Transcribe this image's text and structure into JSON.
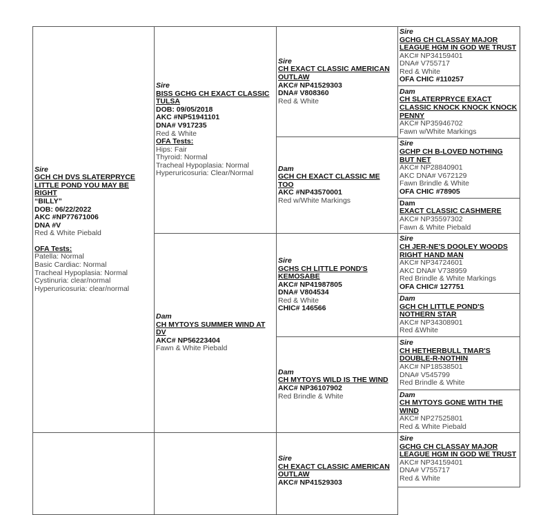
{
  "pedigree": [
    {
      "id": "c1-sire",
      "label": "Sire",
      "name": "GCH CH DVS SLATERPRYCE LITTLE POND YOU MAY BE RIGHT",
      "lines": [
        {
          "text": "“BILLY”",
          "style": "b"
        },
        {
          "text": "DOB: 06/22/2022",
          "style": "b"
        },
        {
          "text": "AKC #NP77671006",
          "style": "b"
        },
        {
          "text": "DNA #V",
          "style": "b"
        },
        {
          "text": "Red & White Piebald",
          "style": "n"
        },
        {
          "text": "OFA Tests:",
          "style": "h gap"
        },
        {
          "text": "Patella: Normal",
          "style": "n"
        },
        {
          "text": "Basic Cardiac: Normal",
          "style": "n"
        },
        {
          "text": "Tracheal Hypoplasia: Normal",
          "style": "n"
        },
        {
          "text": "Cystinuria: clear/normal",
          "style": "n"
        },
        {
          "text": "Hyperuricosuria: clear/normal",
          "style": "n"
        }
      ]
    },
    {
      "id": "c2-sire",
      "label": "Sire",
      "name": "BISS GCHG CH EXACT CLASSIC TULSA",
      "lines": [
        {
          "text": "DOB: 09/05/2018",
          "style": "b"
        },
        {
          "text": "AKC #NP51941101",
          "style": "b"
        },
        {
          "text": "DNA# V917235",
          "style": "b"
        },
        {
          "text": "Red & White",
          "style": "n"
        },
        {
          "text": "OFA Tests:",
          "style": "h"
        },
        {
          "text": "Hips: Fair",
          "style": "n"
        },
        {
          "text": "Thyroid: Normal",
          "style": "n"
        },
        {
          "text": "Tracheal Hypoplasia: Normal",
          "style": "n"
        },
        {
          "text": "Hyperuricosuria: Clear/Normal",
          "style": "n"
        }
      ]
    },
    {
      "id": "c2-dam",
      "label": "Dam",
      "name": "CH MYTOYS SUMMER WIND AT DV",
      "lines": [
        {
          "text": "AKC# NP56223404",
          "style": "b"
        },
        {
          "text": "Fawn & White Piebald",
          "style": "n"
        }
      ]
    },
    {
      "id": "c3-1",
      "label": "Sire",
      "name": "CH EXACT CLASSIC AMERICAN OUTLAW",
      "lines": [
        {
          "text": "AKC# NP41529303",
          "style": "b"
        },
        {
          "text": "DNA# V808360",
          "style": "b"
        },
        {
          "text": "Red & White",
          "style": "n"
        }
      ]
    },
    {
      "id": "c3-2",
      "label": "Dam",
      "name": "GCH CH EXACT CLASSIC ME TOO",
      "lines": [
        {
          "text": "AKC #NP43570001",
          "style": "b"
        },
        {
          "text": "Red w/White Markings",
          "style": "n"
        }
      ]
    },
    {
      "id": "c3-3",
      "label": "Sire",
      "name": "GCHS CH LITTLE POND'S KEMOSABE",
      "lines": [
        {
          "text": "AKC# NP41987805",
          "style": "b"
        },
        {
          "text": "DNA# V804534",
          "style": "b"
        },
        {
          "text": "Red & White",
          "style": "n"
        },
        {
          "text": "CHIC# 146566",
          "style": "b"
        }
      ]
    },
    {
      "id": "c3-4",
      "label": "Dam",
      "name": "CH MYTOYS WILD IS THE WIND",
      "lines": [
        {
          "text": "AKC# NP36107902",
          "style": "b"
        },
        {
          "text": "Red Brindle & White",
          "style": "n"
        }
      ]
    },
    {
      "id": "c3-5",
      "label": "Sire",
      "name": "CH EXACT CLASSIC AMERICAN OUTLAW",
      "lines": [
        {
          "text": "AKC# NP41529303",
          "style": "b"
        }
      ]
    },
    {
      "id": "c4-1",
      "label": "Sire",
      "name": "GCHG CH CLASSAY MAJOR LEAGUE HGM IN GOD WE TRUST",
      "lines": [
        {
          "text": "AKC# NP34159401",
          "style": "n"
        },
        {
          "text": "DNA# V755717",
          "style": "n"
        },
        {
          "text": "Red & White",
          "style": "n"
        },
        {
          "text": "OFA CHIC #110257",
          "style": "b"
        }
      ]
    },
    {
      "id": "c4-2",
      "label": "Dam",
      "name": "CH SLATERPRYCE EXACT CLASSIC KNOCK KNOCK KNOCK PENNY",
      "lines": [
        {
          "text": "AKC# NP35946702",
          "style": "n"
        },
        {
          "text": "Fawn w/White Markings",
          "style": "n"
        }
      ]
    },
    {
      "id": "c4-3",
      "label": "Sire",
      "name": "GCHP CH B-LOVED NOTHING BUT NET",
      "lines": [
        {
          "text": "AKC# NP28840901",
          "style": "n"
        },
        {
          "text": "AKC DNA# V672129",
          "style": "n"
        },
        {
          "text": "Fawn Brindle & White",
          "style": "n"
        },
        {
          "text": "OFA CHIC #78905",
          "style": "b"
        }
      ]
    },
    {
      "id": "c4-4",
      "label": "Dam",
      "labelPlain": true,
      "name": "EXACT CLASSIC CASHMERE",
      "lines": [
        {
          "text": "AKC# NP35597302",
          "style": "n"
        },
        {
          "text": "Fawn & White Piebald",
          "style": "n"
        }
      ]
    },
    {
      "id": "c4-5",
      "label": "Sire",
      "name": "CH JER-NE'S DOOLEY WOODS RIGHT HAND MAN",
      "lines": [
        {
          "text": "AKC# NP34724601",
          "style": "n"
        },
        {
          "text": "AKC DNA# V738959",
          "style": "n"
        },
        {
          "text": "Red Brindle & White Markings",
          "style": "n"
        },
        {
          "text": "OFA CHIC# 127751",
          "style": "b"
        }
      ]
    },
    {
      "id": "c4-6",
      "label": "Dam",
      "name": "GCH CH LITTLE POND'S NOTHERN STAR",
      "lines": [
        {
          "text": "AKC# NP34308901",
          "style": "n"
        },
        {
          "text": "Red &White",
          "style": "n"
        }
      ]
    },
    {
      "id": "c4-7",
      "label": "Sire",
      "name": "CH HETHERBULL TMAR'S DOUBLE-R-NOTHIN",
      "lines": [
        {
          "text": "AKC# NP18538501",
          "style": "n"
        },
        {
          "text": "DNA# V545799",
          "style": "n"
        },
        {
          "text": "Red Brindle & White",
          "style": "n"
        }
      ]
    },
    {
      "id": "c4-8",
      "label": "Dam",
      "name": "CH MYTOYS GONE WITH THE WIND",
      "lines": [
        {
          "text": "AKC# NP27525801",
          "style": "n"
        },
        {
          "text": "Red & White Piebald",
          "style": "n"
        }
      ]
    },
    {
      "id": "c4-9",
      "label": "Sire",
      "name": "GCHG CH CLASSAY  MAJOR LEAGUE HGM IN GOD WE TRUST",
      "lines": [
        {
          "text": "AKC# NP34159401",
          "style": "n"
        },
        {
          "text": "DNA# V755717",
          "style": "n"
        },
        {
          "text": "Red & White",
          "style": "n"
        }
      ]
    }
  ]
}
